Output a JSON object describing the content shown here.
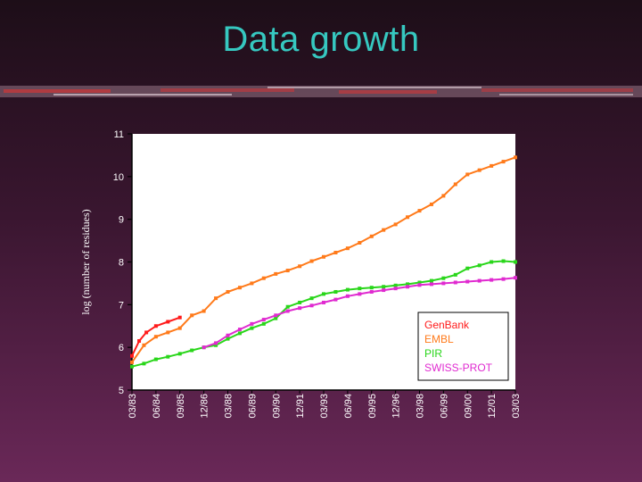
{
  "slide": {
    "title": "Data growth"
  },
  "chart_data": {
    "type": "line",
    "title": "",
    "xlabel": "",
    "ylabel": "log (number of residues)",
    "ylim": [
      5,
      11
    ],
    "yticks": [
      5,
      6,
      7,
      8,
      9,
      10,
      11
    ],
    "x_tick_labels": [
      "03/83",
      "06/84",
      "09/85",
      "12/86",
      "03/88",
      "06/89",
      "09/90",
      "12/91",
      "03/93",
      "06/94",
      "09/95",
      "12/96",
      "03/98",
      "06/99",
      "09/00",
      "12/01",
      "03/03"
    ],
    "legend_position": "bottom-right",
    "series": [
      {
        "name": "GenBank",
        "color": "#ff1a1a",
        "x": [
          0,
          0.3,
          0.6,
          1.0,
          1.5,
          2.0
        ],
        "values": [
          5.8,
          6.15,
          6.35,
          6.5,
          6.6,
          6.7
        ]
      },
      {
        "name": "EMBL",
        "color": "#ff7a1a",
        "x": [
          0,
          0.5,
          1,
          1.5,
          2,
          2.5,
          3,
          3.5,
          4,
          4.5,
          5,
          5.5,
          6,
          6.5,
          7,
          7.5,
          8,
          8.5,
          9,
          9.5,
          10,
          10.5,
          11,
          11.5,
          12,
          12.5,
          13,
          13.5,
          14,
          14.5,
          15,
          15.5,
          16
        ],
        "values": [
          5.65,
          6.05,
          6.25,
          6.35,
          6.45,
          6.75,
          6.85,
          7.15,
          7.3,
          7.4,
          7.5,
          7.62,
          7.72,
          7.8,
          7.9,
          8.02,
          8.12,
          8.22,
          8.32,
          8.45,
          8.6,
          8.75,
          8.88,
          9.05,
          9.2,
          9.35,
          9.55,
          9.82,
          10.05,
          10.15,
          10.25,
          10.35,
          10.45
        ]
      },
      {
        "name": "PIR",
        "color": "#29d61a",
        "x": [
          0,
          0.5,
          1,
          1.5,
          2,
          2.5,
          3,
          3.5,
          4,
          4.5,
          5,
          5.5,
          6,
          6.5,
          7,
          7.5,
          8,
          8.5,
          9,
          9.5,
          10,
          10.5,
          11,
          11.5,
          12,
          12.5,
          13,
          13.5,
          14,
          14.5,
          15,
          15.5,
          16
        ],
        "values": [
          5.55,
          5.62,
          5.72,
          5.78,
          5.85,
          5.93,
          6.0,
          6.05,
          6.2,
          6.33,
          6.45,
          6.55,
          6.68,
          6.95,
          7.05,
          7.15,
          7.25,
          7.3,
          7.35,
          7.38,
          7.4,
          7.42,
          7.45,
          7.48,
          7.52,
          7.56,
          7.62,
          7.7,
          7.85,
          7.92,
          8.0,
          8.02,
          8.0
        ]
      },
      {
        "name": "SWISS-PROT",
        "color": "#e02ad0",
        "x": [
          3,
          3.5,
          4,
          4.5,
          5,
          5.5,
          6,
          6.5,
          7,
          7.5,
          8,
          8.5,
          9,
          9.5,
          10,
          10.5,
          11,
          11.5,
          12,
          12.5,
          13,
          13.5,
          14,
          14.5,
          15,
          15.5,
          16
        ],
        "values": [
          6.0,
          6.1,
          6.28,
          6.42,
          6.55,
          6.65,
          6.75,
          6.85,
          6.92,
          6.98,
          7.05,
          7.12,
          7.2,
          7.25,
          7.3,
          7.34,
          7.38,
          7.42,
          7.46,
          7.48,
          7.5,
          7.52,
          7.54,
          7.56,
          7.58,
          7.6,
          7.63
        ]
      }
    ]
  }
}
